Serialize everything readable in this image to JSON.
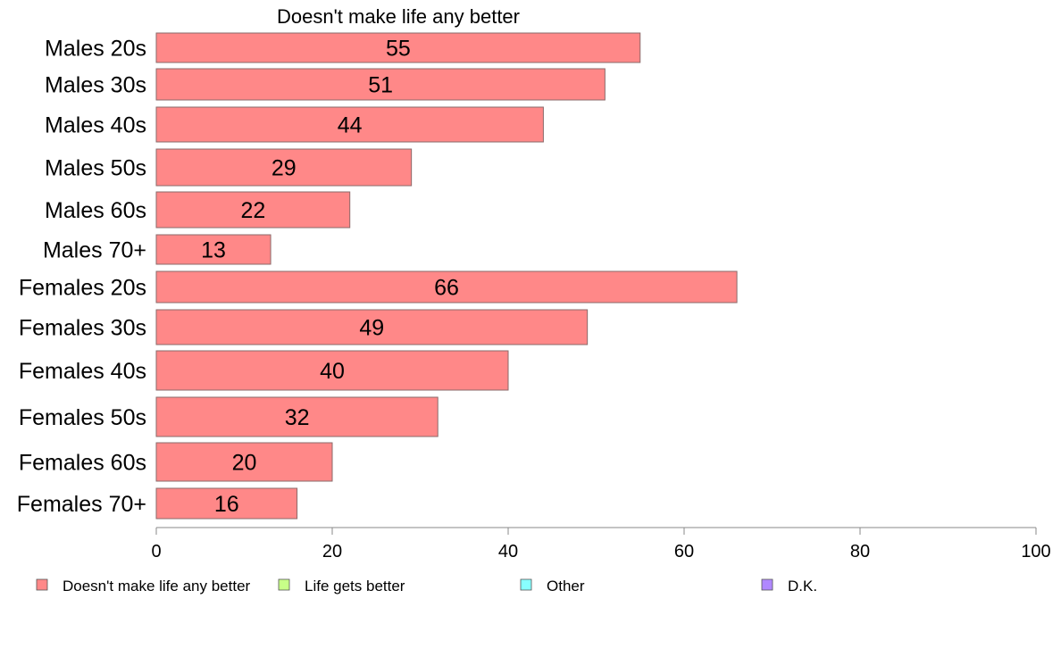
{
  "chart_data": {
    "type": "bar",
    "orientation": "horizontal",
    "title": "Doesn't make life any better",
    "categories": [
      "Males 20s",
      "Males 30s",
      "Males 40s",
      "Males 50s",
      "Males 60s",
      "Males 70+",
      "Females 20s",
      "Females 30s",
      "Females 40s",
      "Females 50s",
      "Females 60s",
      "Females 70+"
    ],
    "series": [
      {
        "name": "Doesn't make life any better",
        "values": [
          55,
          51,
          44,
          29,
          22,
          13,
          66,
          49,
          40,
          32,
          20,
          16
        ]
      }
    ],
    "xlim": [
      0,
      100
    ],
    "xticks": [
      0,
      20,
      40,
      60,
      80,
      100
    ],
    "grid": false,
    "legend_position": "bottom",
    "legend": [
      {
        "label": "Doesn't make life any better",
        "color": "#ff8888"
      },
      {
        "label": "Life gets better",
        "color": "#c8ff88"
      },
      {
        "label": "Other",
        "color": "#88ffff"
      },
      {
        "label": "D.K.",
        "color": "#b088ff"
      }
    ],
    "bar_color": "#ff8888",
    "bar_stroke": "#8a6a6a",
    "axis_color": "#888888"
  }
}
